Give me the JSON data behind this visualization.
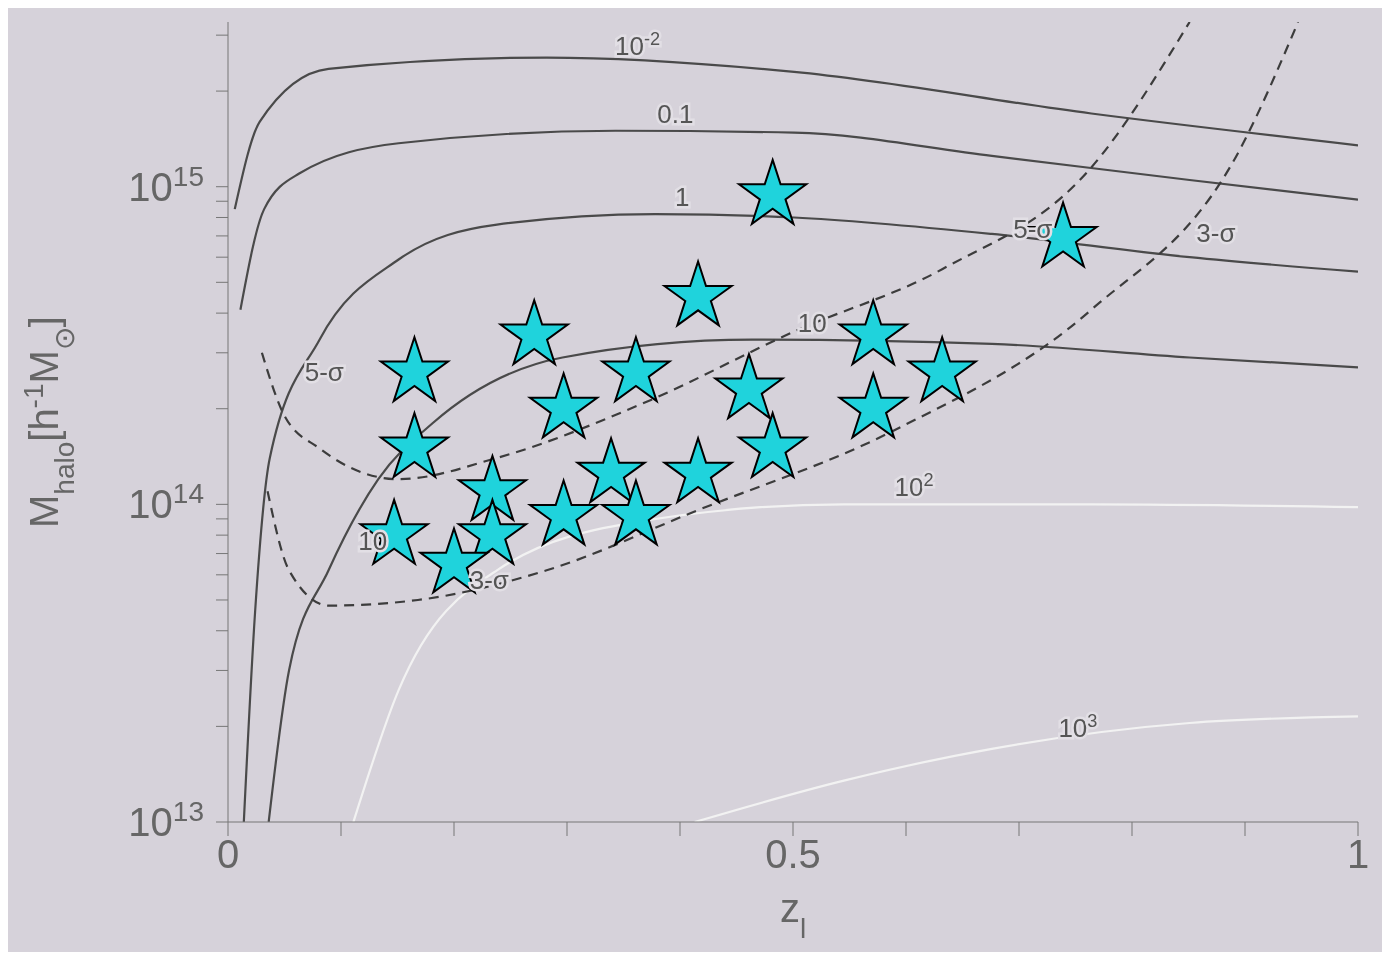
{
  "chart_data": {
    "type": "scatter",
    "xlabel": "z$_{l}$",
    "ylabel": "M$_{halo}$[h$^{-1}$M$_{⊙}$]",
    "log": "y",
    "xlim": [
      0,
      1
    ],
    "xticks": [
      0,
      {
        "value": 0.1,
        "label": null
      },
      {
        "value": 0.2,
        "label": null
      },
      {
        "value": 0.3,
        "label": null
      },
      {
        "value": 0.4,
        "label": null
      },
      0.5,
      {
        "value": 0.6,
        "label": null
      },
      {
        "value": 0.7,
        "label": null
      },
      {
        "value": 0.8,
        "label": null
      },
      {
        "value": 0.9,
        "label": null
      },
      1
    ],
    "ylim": [
      10000000000000.0,
      3300000000000000.0
    ],
    "yticks": [
      {
        "value": 10000000000000.0,
        "label": "10$^{13}$"
      },
      {
        "value": 20000000000000.0,
        "label": null
      },
      {
        "value": 30000000000000.0,
        "label": null
      },
      {
        "value": 40000000000000.0,
        "label": null
      },
      {
        "value": 50000000000000.0,
        "label": null
      },
      {
        "value": 60000000000000.0,
        "label": null
      },
      {
        "value": 70000000000000.0,
        "label": null
      },
      {
        "value": 80000000000000.0,
        "label": null
      },
      {
        "value": 90000000000000.0,
        "label": null
      },
      {
        "value": 100000000000000.0,
        "label": "10$^{14}$"
      },
      {
        "value": 200000000000000.0,
        "label": null
      },
      {
        "value": 300000000000000.0,
        "label": null
      },
      {
        "value": 400000000000000.0,
        "label": null
      },
      {
        "value": 500000000000000.0,
        "label": null
      },
      {
        "value": 600000000000000.0,
        "label": null
      },
      {
        "value": 700000000000000.0,
        "label": null
      },
      {
        "value": 800000000000000.0,
        "label": null
      },
      {
        "value": 900000000000000.0,
        "label": null
      },
      {
        "value": 1000000000000000.0,
        "label": "10$^{15}$"
      },
      {
        "value": 2000000000000000.0,
        "label": null
      },
      {
        "value": 3000000000000000.0,
        "label": null
      }
    ],
    "series": [
      {
        "marker": "star",
        "color": "#1fd3dc",
        "x": [
          0.482,
          0.739,
          0.416,
          0.271,
          0.571,
          0.165,
          0.361,
          0.632,
          0.461,
          0.297,
          0.571,
          0.165,
          0.482,
          0.339,
          0.416,
          0.234,
          0.297,
          0.361,
          0.147,
          0.234,
          0.2
        ],
        "values": [
          940000000000000.0,
          690000000000000.0,
          450000000000000.0,
          340000000000000.0,
          340000000000000.0,
          260000000000000.0,
          260000000000000.0,
          260000000000000.0,
          230000000000000.0,
          200000000000000.0,
          200000000000000.0,
          150000000000000.0,
          150000000000000.0,
          125000000000000.0,
          125000000000000.0,
          110000000000000.0,
          92000000000000.0,
          92000000000000.0,
          80000000000000.0,
          80000000000000.0,
          65000000000000.0
        ]
      },
      {
        "type": "line",
        "color": "#4a4a4a",
        "line_style": "solid",
        "x": [
          0.006,
          0.028,
          0.089,
          0.282,
          0.501,
          0.764,
          1.0
        ],
        "values": [
          850000000000000.0,
          1600000000000000.0,
          2350000000000000.0,
          2550000000000000.0,
          2300000000000000.0,
          1700000000000000.0,
          1350000000000000.0
        ]
      },
      {
        "type": "line",
        "color": "#4a4a4a",
        "line_style": "solid",
        "x": [
          0.011,
          0.032,
          0.063,
          0.151,
          0.343,
          0.501,
          0.676,
          0.851,
          1.0
        ],
        "values": [
          410000000000000.0,
          850000000000000.0,
          1100000000000000.0,
          1370000000000000.0,
          1500000000000000.0,
          1480000000000000.0,
          1250000000000000.0,
          1050000000000000.0,
          910000000000000.0
        ]
      },
      {
        "type": "line",
        "color": "#4a4a4a",
        "line_style": "solid",
        "x": [
          0.014,
          0.024,
          0.037,
          0.081,
          0.151,
          0.238,
          0.378,
          0.501,
          0.676,
          0.851,
          1.0
        ],
        "values": [
          10000000000000.0,
          46000000000000.0,
          140000000000000.0,
          330000000000000.0,
          590000000000000.0,
          760000000000000.0,
          820000000000000.0,
          800000000000000.0,
          710000000000000.0,
          600000000000000.0,
          540000000000000.0
        ]
      },
      {
        "type": "line",
        "color": "#4a4a4a",
        "line_style": "solid",
        "x": [
          0.036,
          0.054,
          0.089,
          0.133,
          0.181,
          0.296,
          0.464,
          0.676,
          0.851,
          1.0
        ],
        "values": [
          10000000000000.0,
          30000000000000.0,
          62000000000000.0,
          120000000000000.0,
          180000000000000.0,
          290000000000000.0,
          330000000000000.0,
          320000000000000.0,
          290000000000000.0,
          270000000000000.0
        ]
      },
      {
        "type": "line",
        "color": "#f2f2f2",
        "line_style": "solid",
        "x": [
          0.111,
          0.151,
          0.238,
          0.37,
          0.545,
          0.764,
          1.0
        ],
        "values": [
          10000000000000.0,
          26000000000000.0,
          62000000000000.0,
          89000000000000.0,
          100000000000000.0,
          100000000000000.0,
          98000000000000.0
        ]
      },
      {
        "type": "line",
        "color": "#f2f2f2",
        "line_style": "solid",
        "x": [
          0.413,
          0.545,
          0.676,
          0.851,
          1.0
        ],
        "values": [
          10000000000000.0,
          13500000000000.0,
          17000000000000.0,
          20500000000000.0,
          21500000000000.0
        ]
      },
      {
        "type": "line",
        "color": "#3c3c3c",
        "line_style": "dashed",
        "x": [
          0.035,
          0.054,
          0.089,
          0.168,
          0.282,
          0.413,
          0.588,
          0.764,
          0.895,
          0.947
        ],
        "values": [
          110000000000000.0,
          62000000000000.0,
          48000000000000.0,
          50000000000000.0,
          62000000000000.0,
          95000000000000.0,
          170000000000000.0,
          410000000000000.0,
          1300000000000000.0,
          3300000000000000.0
        ]
      },
      {
        "type": "line",
        "color": "#3c3c3c",
        "line_style": "dashed",
        "x": [
          0.03,
          0.05,
          0.081,
          0.151,
          0.238,
          0.37,
          0.501,
          0.632,
          0.764,
          0.851
        ],
        "values": [
          300000000000000.0,
          190000000000000.0,
          150000000000000.0,
          120000000000000.0,
          140000000000000.0,
          210000000000000.0,
          350000000000000.0,
          550000000000000.0,
          1150000000000000.0,
          3300000000000000.0
        ]
      }
    ],
    "annotations": [
      {
        "text": "10$^{-2}$",
        "x": 0.308,
        "y": 2450000000000000.0
      },
      {
        "text": "0.1",
        "x": 0.352,
        "y": 1500000000000000.0
      },
      {
        "text": "1",
        "x": 0.381,
        "y": 820000000000000.0
      },
      {
        "text": "10",
        "x": 0.483,
        "y": 330000000000000.0
      },
      {
        "text": "10",
        "x": 0.094,
        "y": 68000000000000.0
      },
      {
        "text": "10$^{2}$",
        "x": 0.562,
        "y": 100000000000000.0
      },
      {
        "text": "10$^{3}$",
        "x": 0.707,
        "y": 17500000000000.0
      },
      {
        "text": "5-σ",
        "x": 0.667,
        "y": 650000000000000.0
      },
      {
        "text": "3-σ",
        "x": 0.829,
        "y": 630000000000000.0
      },
      {
        "text": "3-σ",
        "x": 0.186,
        "y": 51000000000000.0
      },
      {
        "text": "5-σ",
        "x": 0.04,
        "y": 230000000000000.0
      }
    ]
  }
}
